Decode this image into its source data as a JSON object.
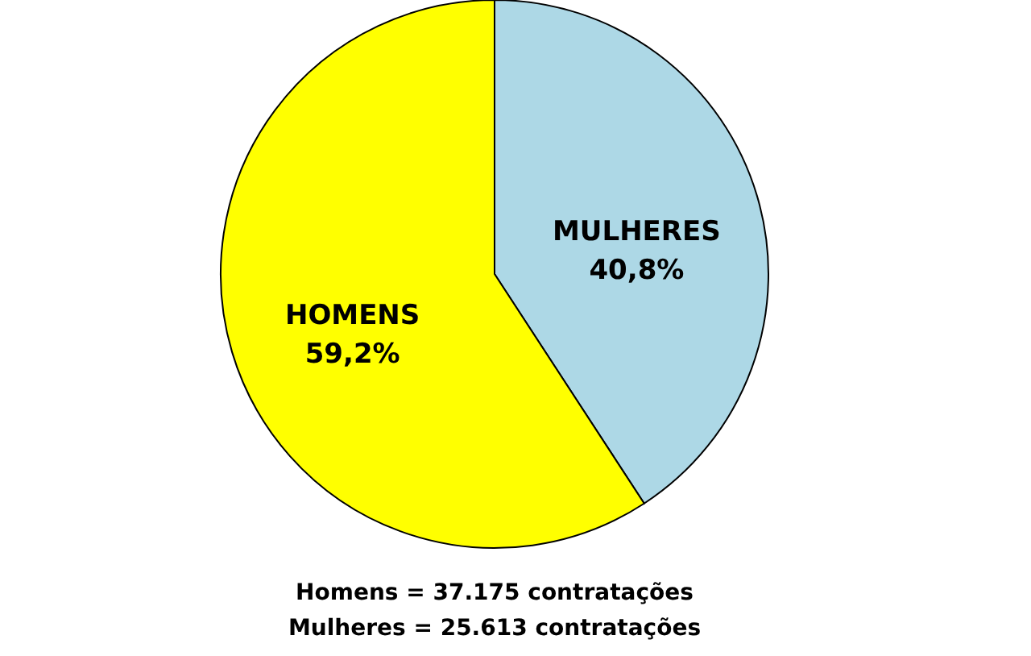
{
  "chart_data": {
    "type": "pie",
    "categories": [
      "MULHERES",
      "HOMENS"
    ],
    "values": [
      40.8,
      59.2
    ],
    "colors": [
      "#add8e6",
      "#ffff00"
    ],
    "value_labels": [
      "40,8%",
      "59,2%"
    ],
    "annotations": [
      "Homens = 37.175 contratações",
      "Mulheres = 25.613 contratações"
    ]
  }
}
